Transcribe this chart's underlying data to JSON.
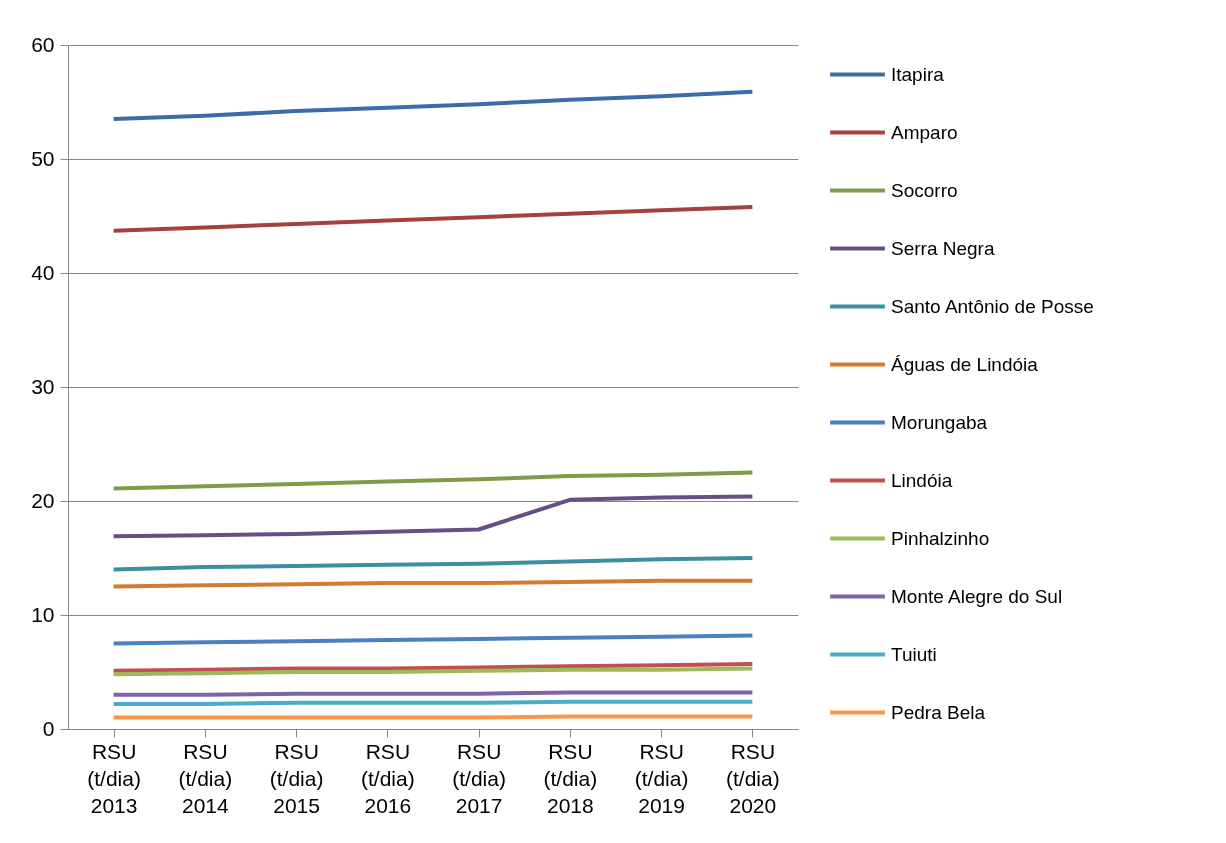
{
  "chart_data": {
    "type": "line",
    "categories": [
      "RSU (t/dia) 2013",
      "RSU (t/dia) 2014",
      "RSU (t/dia) 2015",
      "RSU (t/dia) 2016",
      "RSU (t/dia) 2017",
      "RSU (t/dia) 2018",
      "RSU (t/dia) 2019",
      "RSU (t/dia) 2020"
    ],
    "ylim": [
      0,
      60
    ],
    "yticks": [
      0,
      10,
      20,
      30,
      40,
      50,
      60
    ],
    "grid": "y",
    "legend": "right",
    "marker": "none",
    "series": [
      {
        "name": "Itapira",
        "color": "#3e6ba8",
        "values": [
          53.5,
          53.8,
          54.2,
          54.5,
          54.8,
          55.2,
          55.5,
          55.9
        ]
      },
      {
        "name": "Amparo",
        "color": "#a5403d",
        "values": [
          43.7,
          44.0,
          44.3,
          44.6,
          44.9,
          45.2,
          45.5,
          45.8
        ]
      },
      {
        "name": "Socorro",
        "color": "#7f9a48",
        "values": [
          21.1,
          21.3,
          21.5,
          21.7,
          21.9,
          22.2,
          22.3,
          22.5
        ]
      },
      {
        "name": "Serra Negra",
        "color": "#664f85",
        "values": [
          16.9,
          17.0,
          17.1,
          17.3,
          17.5,
          20.1,
          20.3,
          20.4
        ]
      },
      {
        "name": "Santo Antônio de Posse",
        "color": "#3a8fa3",
        "values": [
          14.0,
          14.2,
          14.3,
          14.4,
          14.5,
          14.7,
          14.9,
          15.0
        ]
      },
      {
        "name": "Águas de Lindóia",
        "color": "#d27c2f",
        "values": [
          12.5,
          12.6,
          12.7,
          12.8,
          12.8,
          12.9,
          13.0,
          13.0
        ]
      },
      {
        "name": "Morungaba",
        "color": "#4a7fc0",
        "values": [
          7.5,
          7.6,
          7.7,
          7.8,
          7.9,
          8.0,
          8.1,
          8.2
        ]
      },
      {
        "name": "Lindóia",
        "color": "#c0504d",
        "values": [
          5.1,
          5.2,
          5.3,
          5.3,
          5.4,
          5.5,
          5.6,
          5.7
        ]
      },
      {
        "name": "Pinhalzinho",
        "color": "#9bbb59",
        "values": [
          4.8,
          4.9,
          5.0,
          5.0,
          5.1,
          5.2,
          5.2,
          5.3
        ]
      },
      {
        "name": "Monte Alegre do Sul",
        "color": "#8064a2",
        "values": [
          3.0,
          3.0,
          3.1,
          3.1,
          3.1,
          3.2,
          3.2,
          3.2
        ]
      },
      {
        "name": "Tuiuti",
        "color": "#4bacc6",
        "values": [
          2.2,
          2.2,
          2.3,
          2.3,
          2.3,
          2.4,
          2.4,
          2.4
        ]
      },
      {
        "name": "Pedra Bela",
        "color": "#f79646",
        "values": [
          1.0,
          1.0,
          1.0,
          1.0,
          1.0,
          1.1,
          1.1,
          1.1
        ]
      }
    ]
  }
}
